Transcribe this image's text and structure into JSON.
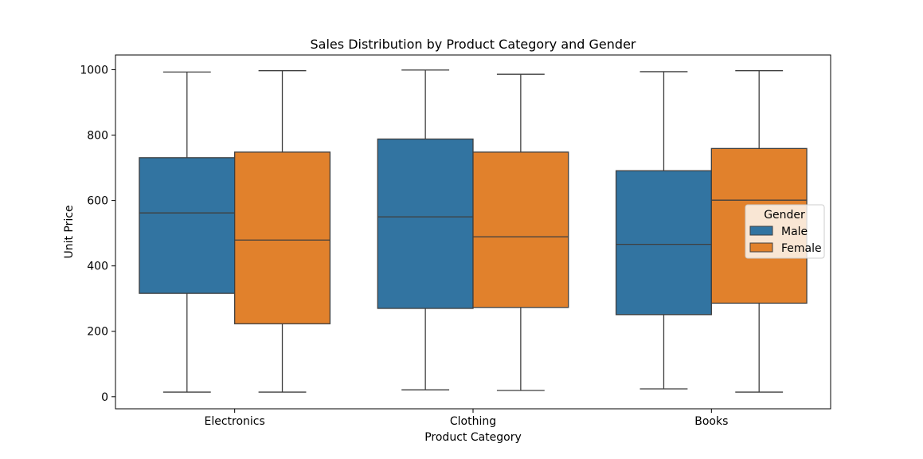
{
  "chart_data": {
    "type": "boxplot",
    "title": "Sales Distribution by Product Category and Gender",
    "xlabel": "Product Category",
    "ylabel": "Unit Price",
    "ylim": [
      -37,
      1045
    ],
    "yticks": [
      0,
      200,
      400,
      600,
      800,
      1000
    ],
    "categories": [
      "Electronics",
      "Clothing",
      "Books"
    ],
    "legend": {
      "title": "Gender",
      "placement": "center-right"
    },
    "series": [
      {
        "name": "Male",
        "color": "#3274a1",
        "boxes": [
          {
            "whisker_low": 14,
            "q1": 316,
            "median": 562,
            "q3": 731,
            "whisker_high": 993
          },
          {
            "whisker_low": 21,
            "q1": 270,
            "median": 550,
            "q3": 788,
            "whisker_high": 999
          },
          {
            "whisker_low": 24,
            "q1": 251,
            "median": 466,
            "q3": 691,
            "whisker_high": 994
          }
        ]
      },
      {
        "name": "Female",
        "color": "#e1812c",
        "boxes": [
          {
            "whisker_low": 14,
            "q1": 223,
            "median": 479,
            "q3": 748,
            "whisker_high": 997
          },
          {
            "whisker_low": 19,
            "q1": 273,
            "median": 489,
            "q3": 748,
            "whisker_high": 986
          },
          {
            "whisker_low": 14,
            "q1": 286,
            "median": 601,
            "q3": 759,
            "whisker_high": 997
          }
        ]
      }
    ]
  }
}
